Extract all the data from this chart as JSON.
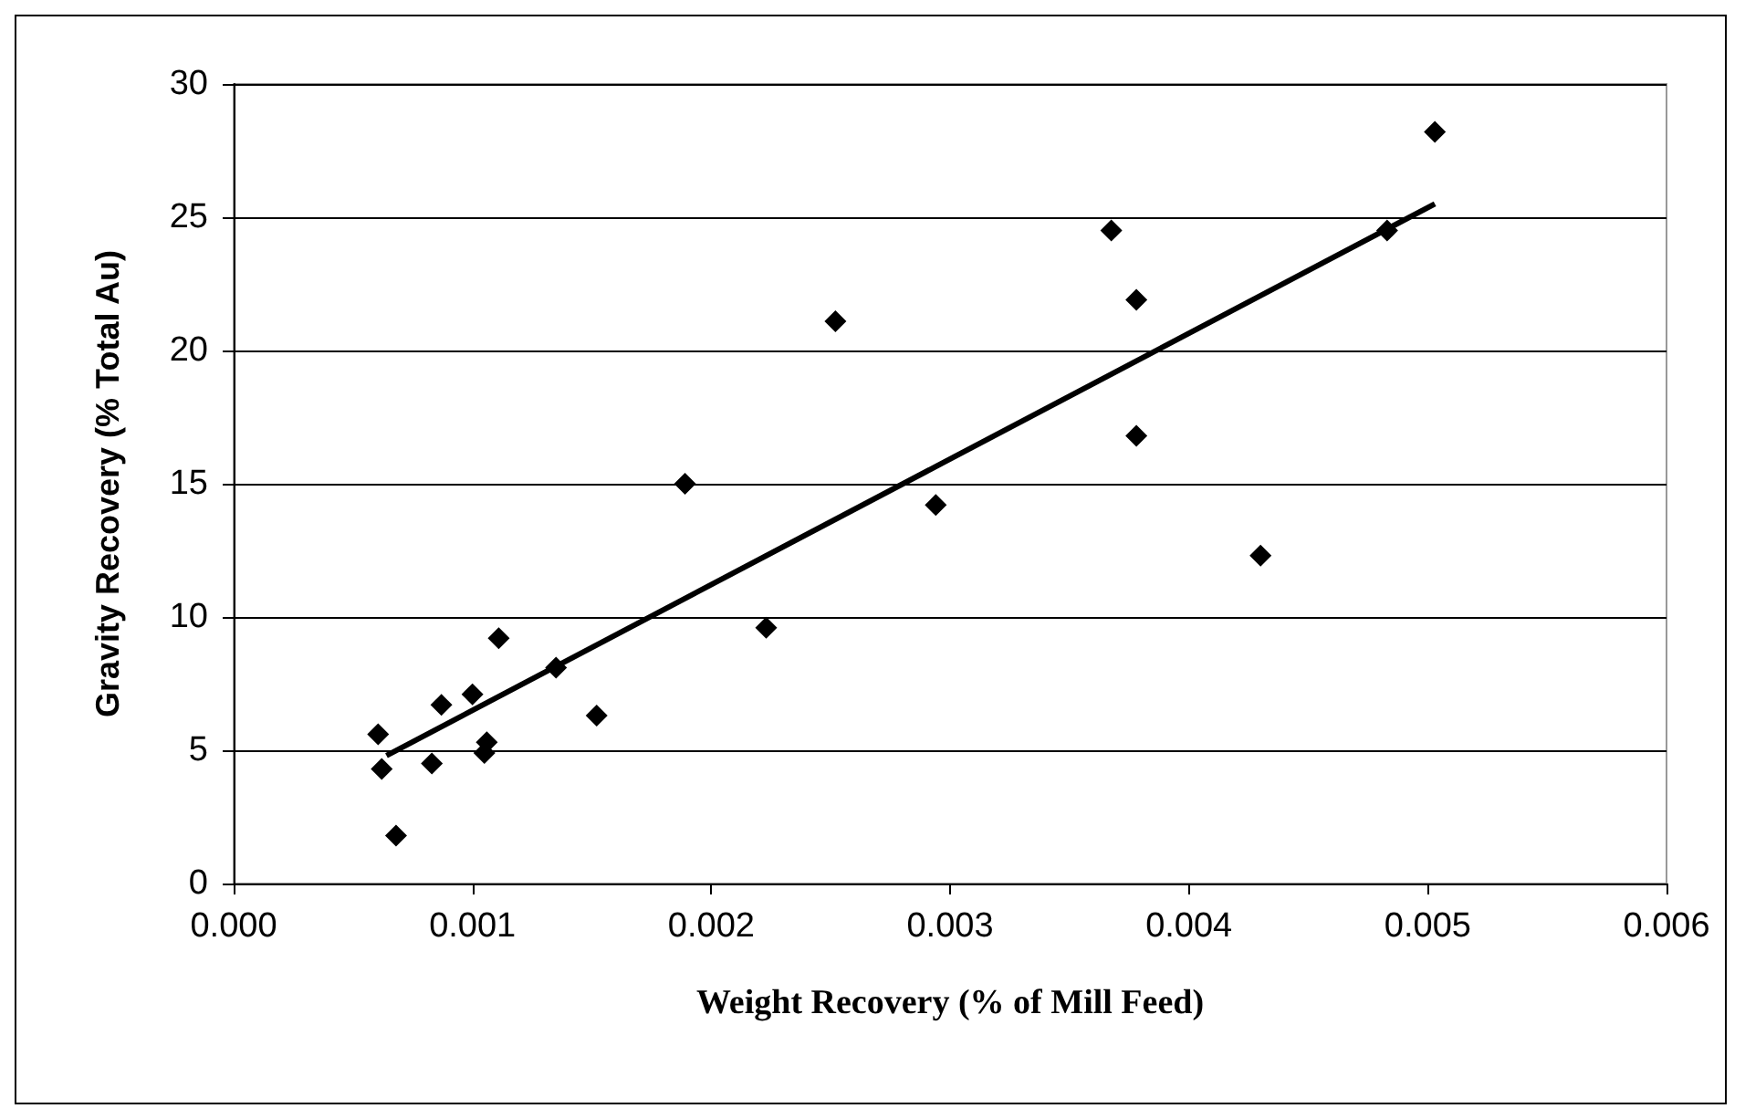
{
  "chart_data": {
    "type": "scatter",
    "xlabel": "Weight Recovery (% of Mill Feed)",
    "ylabel": "Gravity Recovery (% Total Au)",
    "xlim": [
      0,
      0.006
    ],
    "ylim": [
      0,
      30
    ],
    "xticks": [
      {
        "value": 0,
        "label": "0.000"
      },
      {
        "value": 0.001,
        "label": "0.001"
      },
      {
        "value": 0.002,
        "label": "0.002"
      },
      {
        "value": 0.003,
        "label": "0.003"
      },
      {
        "value": 0.004,
        "label": "0.004"
      },
      {
        "value": 0.005,
        "label": "0.005"
      },
      {
        "value": 0.006,
        "label": "0.006"
      }
    ],
    "yticks": [
      0,
      5,
      10,
      15,
      20,
      25,
      30
    ],
    "grid": "y",
    "marker": "diamond",
    "series": [
      {
        "color": "#000000",
        "x": [
          0.000605,
          0.00062,
          0.00068,
          0.00083,
          0.00087,
          0.001,
          0.00105,
          0.00106,
          0.00111,
          0.00135,
          0.00152,
          0.00189,
          0.00223,
          0.00252,
          0.00294,
          0.003675,
          0.00378,
          0.00378,
          0.0043,
          0.00483,
          0.00503
        ],
        "values": [
          5.6,
          4.3,
          1.8,
          4.5,
          6.7,
          7.1,
          4.9,
          5.3,
          9.2,
          8.1,
          6.3,
          15.0,
          9.6,
          21.1,
          14.2,
          24.5,
          21.9,
          16.8,
          12.3,
          24.5,
          28.2
        ]
      },
      {
        "type": "line",
        "color": "#000000",
        "marker": "none",
        "line_style": "solid",
        "x": [
          0.00064,
          0.00503
        ],
        "values": [
          4.8,
          25.5
        ]
      }
    ]
  }
}
